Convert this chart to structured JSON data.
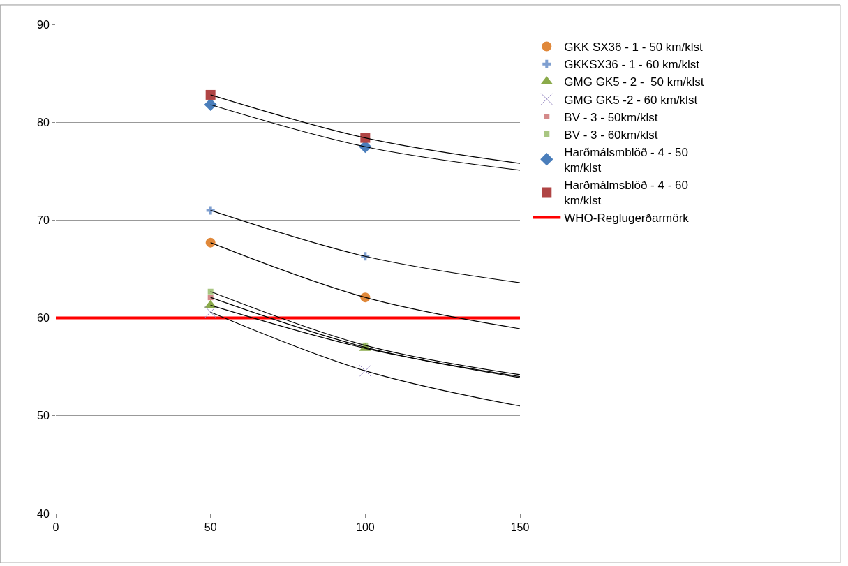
{
  "chart_data": {
    "type": "scatter",
    "x": [
      50,
      100
    ],
    "xlim": [
      0,
      150
    ],
    "xticks": [
      0,
      50,
      100,
      150
    ],
    "ylim": [
      40,
      90
    ],
    "yticks": [
      40,
      50,
      60,
      70,
      80,
      90
    ],
    "grid": "y",
    "legend": "right",
    "series": [
      {
        "name": "GKK SX36 - 1 - 50 km/klst",
        "color": "#e0883a",
        "marker": "circle",
        "values": [
          67.7,
          62.1
        ]
      },
      {
        "name": "GKKSX36 - 1 - 60 km/klst",
        "color": "#7f9fd0",
        "marker": "cross",
        "values": [
          71.0,
          66.3
        ]
      },
      {
        "name": "GMG GK5 - 2 -  50 km/klst",
        "color": "#8aaa4a",
        "marker": "triangle",
        "values": [
          61.3,
          56.9
        ]
      },
      {
        "name": "GMG GK5 -2 - 60 km/klst",
        "color": "#9a8cc4",
        "marker": "x",
        "values": [
          60.6,
          54.6
        ]
      },
      {
        "name": "BV - 3 - 50km/klst",
        "color": "#d48a8a",
        "marker": "square",
        "values": [
          62.1,
          null
        ]
      },
      {
        "name": "BV - 3 - 60km/klst",
        "color": "#a9c682",
        "marker": "square",
        "values": [
          62.7,
          57.2
        ]
      },
      {
        "name": "Harðmálsmblöð - 4 - 50 km/klst",
        "color": "#4a7ebb",
        "marker": "diamond",
        "values": [
          81.8,
          77.5
        ]
      },
      {
        "name": "Harðmálmsblöð - 4 - 60 km/klst",
        "color": "#b04545",
        "marker": "square",
        "values": [
          82.8,
          78.4
        ]
      },
      {
        "type": "line",
        "color": "#000000",
        "x": [
          50,
          100,
          150
        ],
        "values": [
          67.7,
          62.1,
          58.9
        ]
      },
      {
        "type": "line",
        "color": "#000000",
        "x": [
          50,
          100,
          150
        ],
        "values": [
          71.0,
          66.3,
          63.6
        ]
      },
      {
        "type": "line",
        "color": "#000000",
        "x": [
          50,
          100,
          150
        ],
        "values": [
          61.3,
          56.9,
          54.0
        ]
      },
      {
        "type": "line",
        "color": "#000000",
        "x": [
          50,
          100,
          150
        ],
        "values": [
          60.6,
          54.6,
          51.0
        ]
      },
      {
        "type": "line",
        "color": "#000000",
        "x": [
          50,
          100,
          150
        ],
        "values": [
          62.1,
          57.0,
          53.9
        ]
      },
      {
        "type": "line",
        "color": "#000000",
        "x": [
          50,
          100,
          150
        ],
        "values": [
          62.7,
          57.2,
          54.2
        ]
      },
      {
        "type": "line",
        "color": "#000000",
        "x": [
          50,
          100,
          150
        ],
        "values": [
          81.8,
          77.5,
          75.1
        ]
      },
      {
        "type": "line",
        "color": "#000000",
        "x": [
          50,
          100,
          150
        ],
        "values": [
          82.8,
          78.4,
          75.8
        ]
      }
    ],
    "ref_lines": [
      {
        "axis": "y",
        "value": 60,
        "label": "WHO-Reglugerðarmörk",
        "color": "#ff0000"
      }
    ]
  }
}
